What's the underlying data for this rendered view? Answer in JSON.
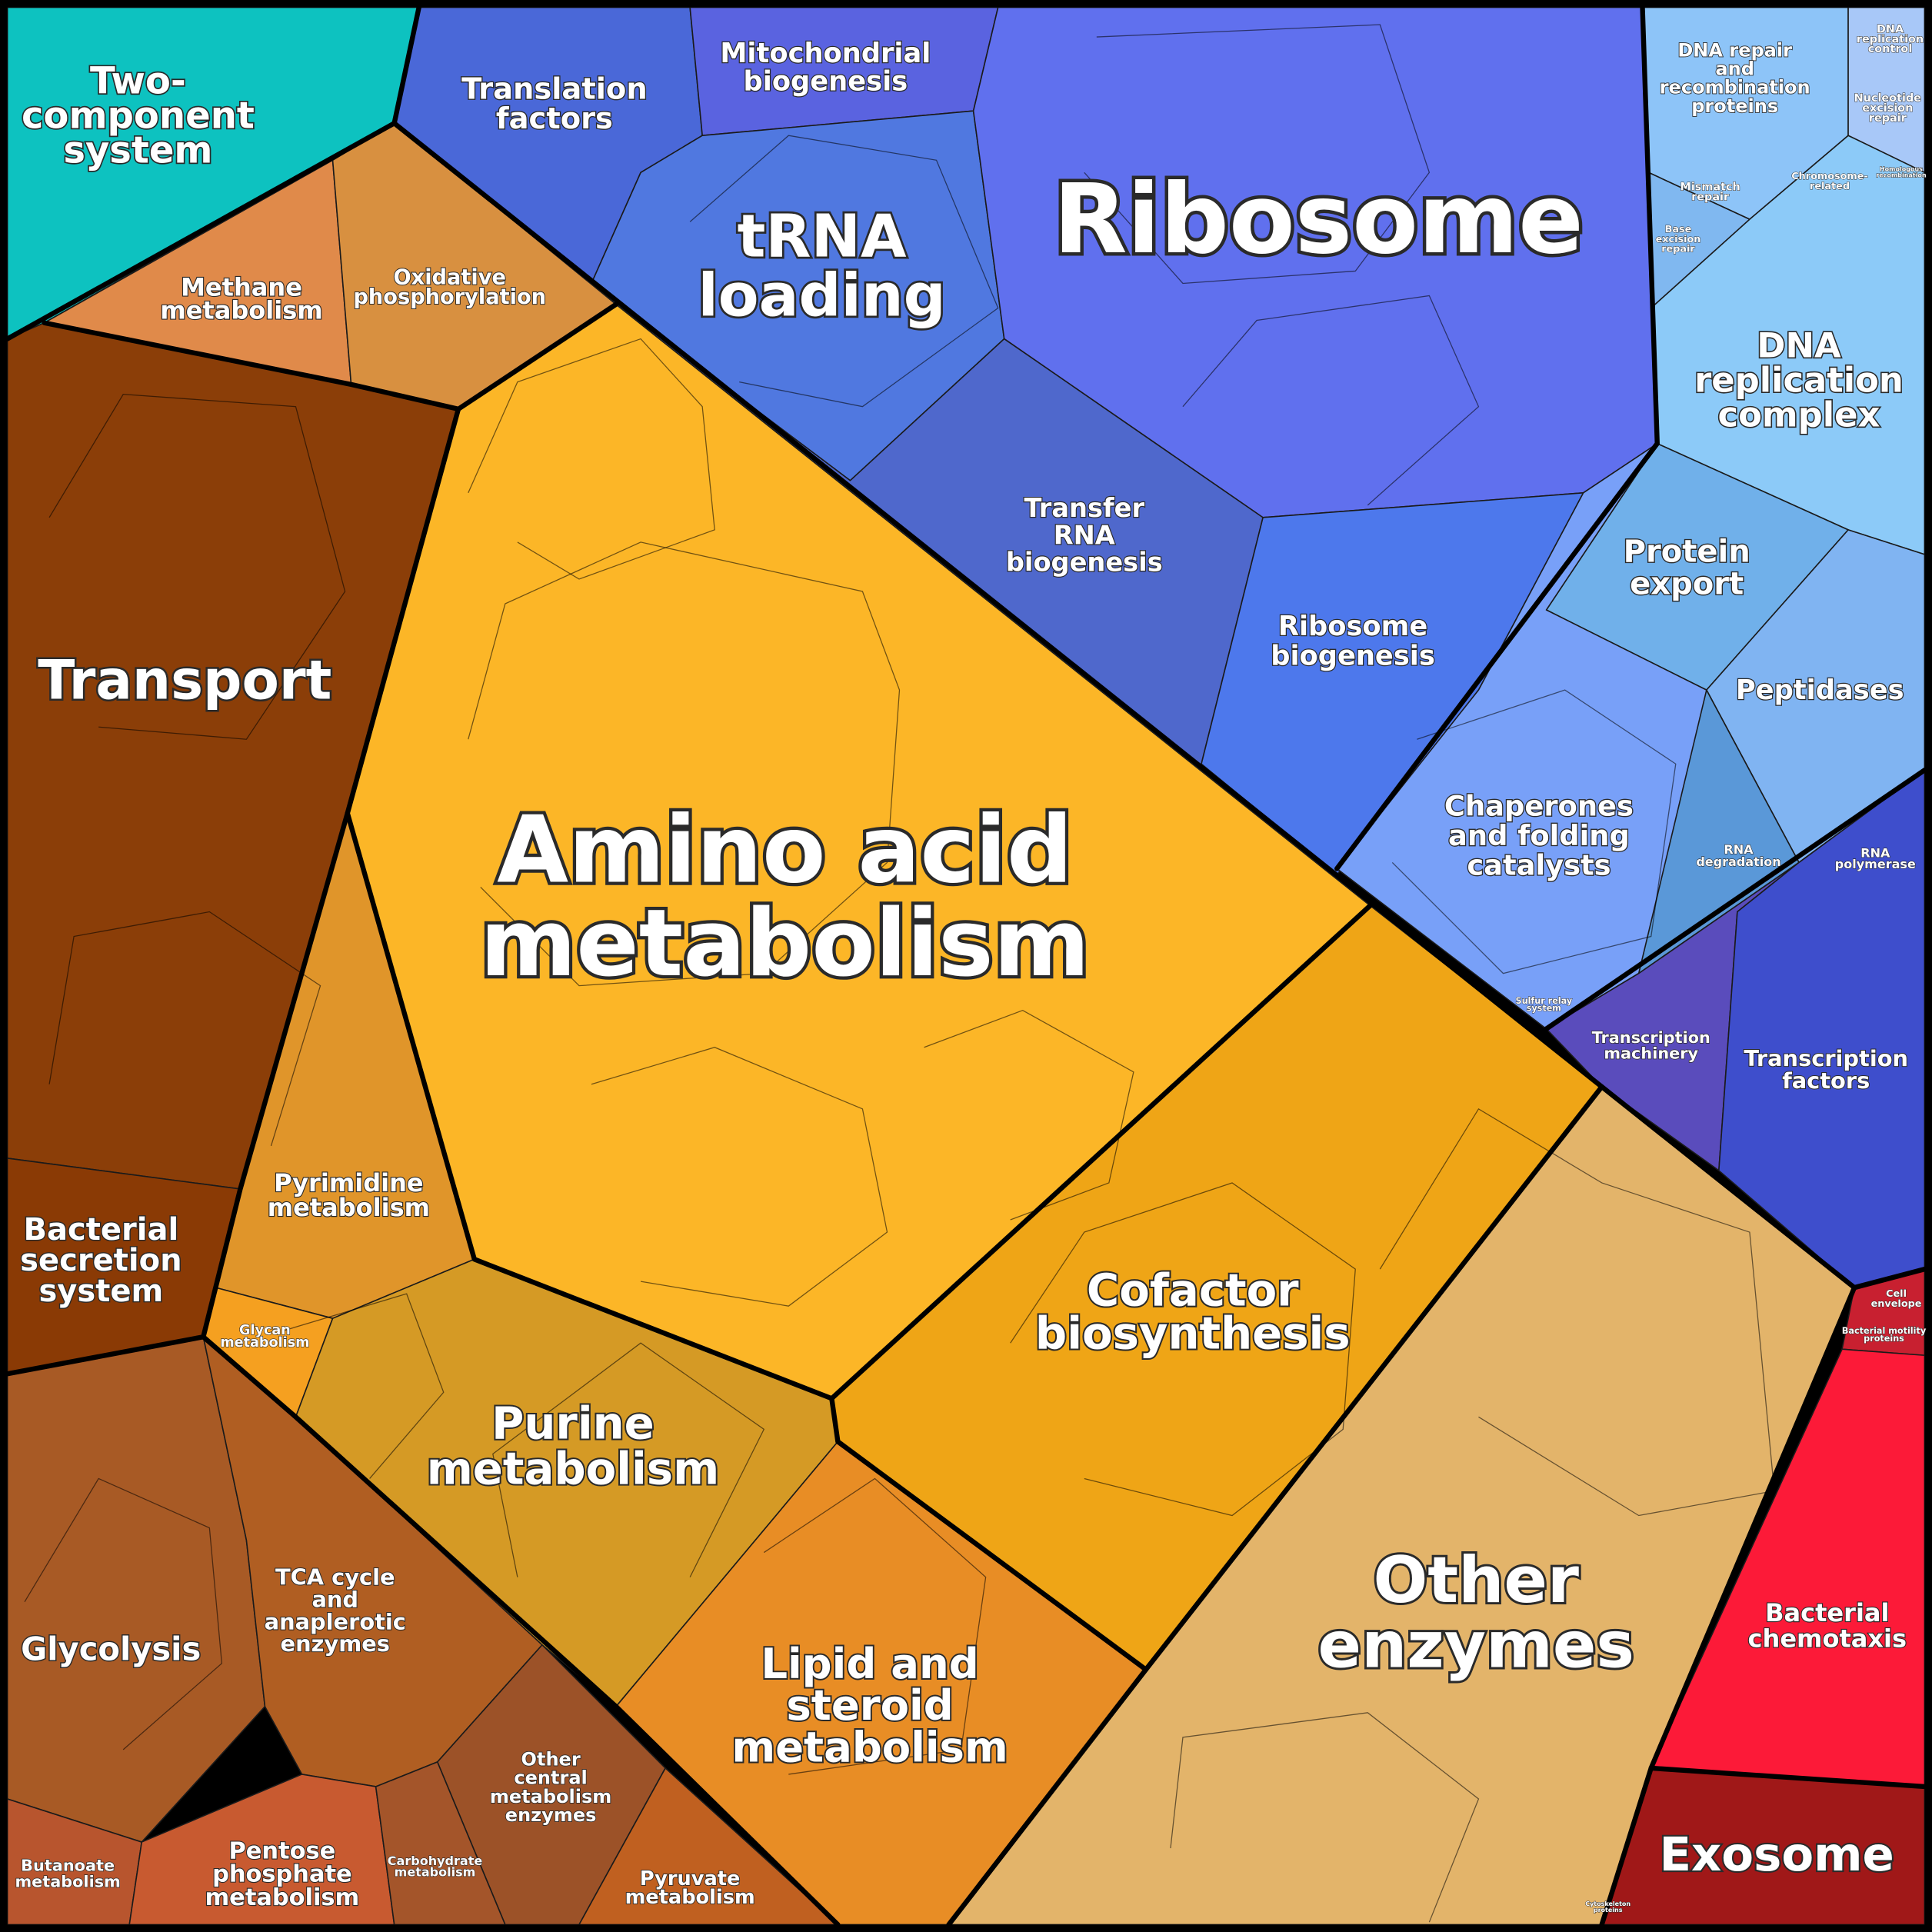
{
  "regions": [
    {
      "label": [
        "Two-",
        "component",
        "system"
      ]
    },
    {
      "label": [
        "Methane",
        "metabolism"
      ]
    },
    {
      "label": [
        "Oxidative",
        "phosphorylation"
      ]
    },
    {
      "label": [
        "Transport"
      ]
    },
    {
      "label": [
        "Bacterial",
        "secretion",
        "system"
      ]
    },
    {
      "label": [
        "Pyrimidine",
        "metabolism"
      ]
    },
    {
      "label": [
        "Glycan",
        "metabolism"
      ]
    },
    {
      "label": [
        "Amino acid",
        "metabolism"
      ]
    },
    {
      "label": [
        "Purine",
        "metabolism"
      ]
    },
    {
      "label": [
        "Cofactor",
        "biosynthesis"
      ]
    },
    {
      "label": [
        "Lipid and",
        "steroid",
        "metabolism"
      ]
    },
    {
      "label": [
        "Other",
        "enzymes"
      ]
    },
    {
      "label": [
        "Glycolysis"
      ]
    },
    {
      "label": [
        "TCA cycle",
        "and",
        "anaplerotic",
        "enzymes"
      ]
    },
    {
      "label": [
        "Other",
        "central",
        "metabolism",
        "enzymes"
      ]
    },
    {
      "label": [
        "Butanoate",
        "metabolism"
      ]
    },
    {
      "label": [
        "Pentose",
        "phosphate",
        "metabolism"
      ]
    },
    {
      "label": [
        "Carbohydrate",
        "metabolism"
      ]
    },
    {
      "label": [
        "Pyruvate",
        "metabolism"
      ]
    },
    {
      "label": [
        "Translation",
        "factors"
      ]
    },
    {
      "label": [
        "Mitochondrial",
        "biogenesis"
      ]
    },
    {
      "label": [
        "tRNA",
        "loading"
      ]
    },
    {
      "label": [
        "Ribosome"
      ]
    },
    {
      "label": [
        "Transfer",
        "RNA",
        "biogenesis"
      ]
    },
    {
      "label": [
        "Ribosome",
        "biogenesis"
      ]
    },
    {
      "label": [
        "DNA repair",
        "and",
        "recombination",
        "proteins"
      ]
    },
    {
      "label": [
        "DNA",
        "replication",
        "control"
      ]
    },
    {
      "label": [
        "Nucleotide",
        "excision",
        "repair"
      ]
    },
    {
      "label": [
        "Mismatch",
        "repair"
      ]
    },
    {
      "label": [
        "Chromosome-",
        "related"
      ]
    },
    {
      "label": [
        "Base",
        "excision",
        "repair"
      ]
    },
    {
      "label": [
        "Homologous",
        "recombination"
      ]
    },
    {
      "label": [
        "DNA",
        "replication",
        "complex"
      ]
    },
    {
      "label": [
        "Protein",
        "export"
      ]
    },
    {
      "label": [
        "Peptidases"
      ]
    },
    {
      "label": [
        "Chaperones",
        "and folding",
        "catalysts"
      ]
    },
    {
      "label": [
        "RNA",
        "degradation"
      ]
    },
    {
      "label": [
        "RNA",
        "polymerase"
      ]
    },
    {
      "label": [
        "Sulfur relay",
        "system"
      ]
    },
    {
      "label": [
        "Transcription",
        "machinery"
      ]
    },
    {
      "label": [
        "Transcription",
        "factors"
      ]
    },
    {
      "label": [
        "Cell",
        "envelope"
      ]
    },
    {
      "label": [
        "Bacterial motility",
        "proteins"
      ]
    },
    {
      "label": [
        "Bacterial",
        "chemotaxis"
      ]
    },
    {
      "label": [
        "Exosome"
      ]
    },
    {
      "label": [
        "Cytoskeleton",
        "proteins"
      ]
    }
  ]
}
